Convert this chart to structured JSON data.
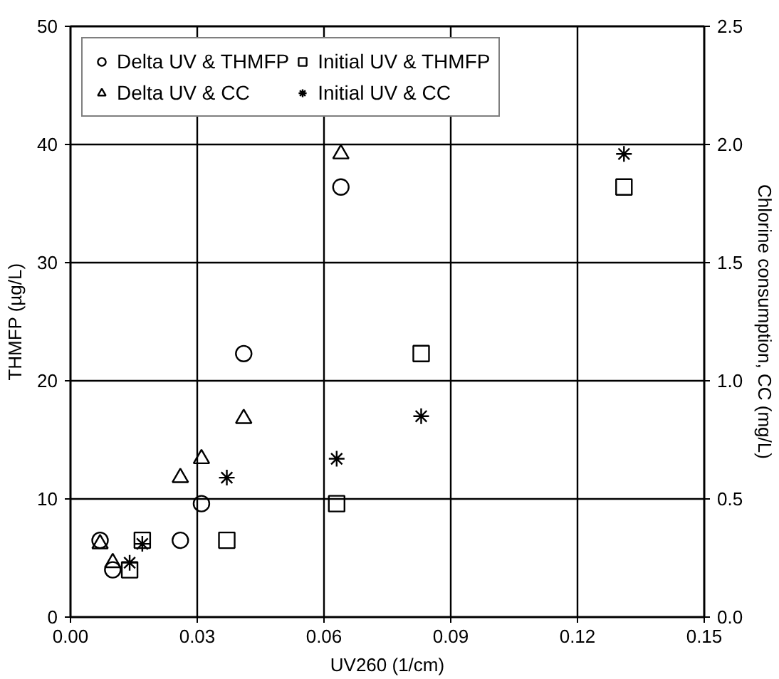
{
  "chart_data": {
    "type": "scatter",
    "xlabel": "UV260 (1/cm)",
    "ylabel": "THMFP (µg/L)",
    "y2label": "Chlorine consumption, CC (mg/L)",
    "series": [
      {
        "name": "Delta UV & THMFP",
        "color": "#000000",
        "marker": "circle",
        "x": [
          0.007,
          0.01,
          0.026,
          0.031,
          0.041,
          0.064
        ],
        "values": [
          6.5,
          4.0,
          6.5,
          9.6,
          22.3,
          36.4
        ]
      },
      {
        "name": "Initial UV & THMFP",
        "color": "#000000",
        "marker": "square",
        "x": [
          0.014,
          0.017,
          0.037,
          0.063,
          0.083,
          0.131
        ],
        "values": [
          4.0,
          6.5,
          6.5,
          9.6,
          22.3,
          36.4
        ]
      },
      {
        "name": "Delta UV & CC",
        "color": "#000000",
        "marker": "triangle",
        "axis": "y2",
        "x": [
          0.007,
          0.01,
          0.026,
          0.031,
          0.041,
          0.064
        ],
        "values": [
          0.31,
          0.23,
          0.59,
          0.67,
          0.84,
          1.96
        ]
      },
      {
        "name": "Initial UV & CC",
        "color": "#000000",
        "marker": "cross",
        "axis": "y2",
        "x": [
          0.014,
          0.017,
          0.037,
          0.063,
          0.083,
          0.131
        ],
        "values": [
          0.23,
          0.31,
          0.59,
          0.67,
          0.85,
          1.96
        ]
      }
    ],
    "xlim": [
      0,
      0.15
    ],
    "xticks": [
      {
        "value": 0,
        "label": "0.00"
      },
      0.03,
      0.06,
      0.09,
      0.12,
      0.15
    ],
    "ylim": [
      0,
      50
    ],
    "yticks": [
      0,
      10,
      20,
      30,
      40,
      50
    ],
    "y2lim": [
      0,
      2.5
    ],
    "y2ticks": [
      {
        "value": 0,
        "label": "0.0"
      },
      {
        "value": 0.5,
        "label": "0.5"
      },
      {
        "value": 1,
        "label": "1.0"
      },
      {
        "value": 1.5,
        "label": "1.5"
      },
      {
        "value": 2,
        "label": "2.0"
      },
      2.5
    ],
    "grid": true,
    "legend": "top left"
  }
}
